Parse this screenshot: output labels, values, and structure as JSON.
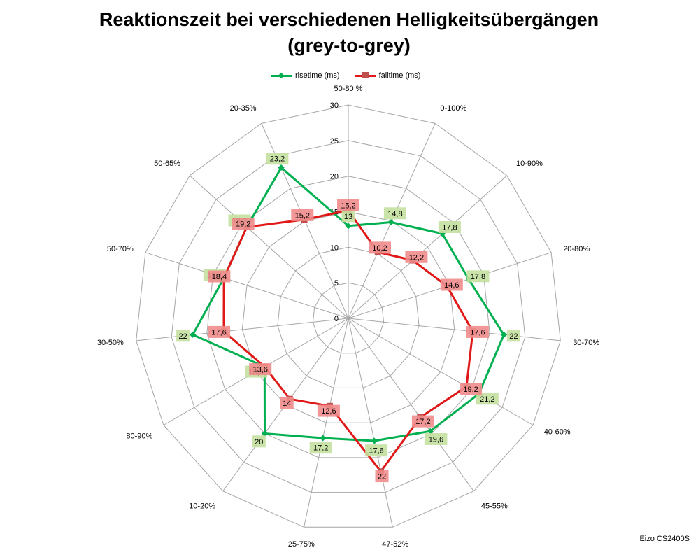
{
  "title": {
    "line1": "Reaktionszeit bei verschiedenen Helligkeitsübergängen",
    "line2": "(grey-to-grey)"
  },
  "watermark": "Eizo CS2400S",
  "chart_data": {
    "type": "radar",
    "categories": [
      "50-80 %",
      "0-100%",
      "10-90%",
      "20-80%",
      "30-70%",
      "40-60%",
      "45-55%",
      "47-52%",
      "25-75%",
      "10-20%",
      "80-90%",
      "30-50%",
      "50-70%",
      "50-65%",
      "20-35%"
    ],
    "rlim": [
      0,
      30
    ],
    "r_ticks": [
      0,
      5,
      10,
      15,
      20,
      25,
      30
    ],
    "grid": true,
    "legend_position": "top",
    "series": [
      {
        "name": "risetime (ms)",
        "color": "#00b050",
        "label_bg": "#c4e0a0",
        "marker": "diamond",
        "values": [
          13,
          14.8,
          17.8,
          17.8,
          22,
          21.2,
          19.6,
          17.6,
          17.2,
          20,
          13.6,
          22,
          18.4,
          19.2,
          23.2
        ],
        "labels": [
          "13",
          "14,8",
          "17,8",
          "17,8",
          "22",
          "21,2",
          "19,6",
          "17,6",
          "17,2",
          "20",
          "13,6",
          "22",
          "18,4",
          "19,2",
          "23,2"
        ]
      },
      {
        "name": "falltime (ms)",
        "color": "#e01818",
        "label_bg": "#f08c8c",
        "marker": "square",
        "values": [
          15.2,
          10.2,
          12.2,
          14.6,
          17.6,
          19.2,
          17.2,
          22,
          12.6,
          14,
          13.6,
          17.6,
          18.4,
          19.2,
          15.2
        ],
        "labels": [
          "15,2",
          "10,2",
          "12,2",
          "14,6",
          "17,6",
          "19,2",
          "17,2",
          "22",
          "12,6",
          "14",
          "13,6",
          "17,6",
          "18,4",
          "19,2",
          "15,2"
        ]
      }
    ]
  }
}
